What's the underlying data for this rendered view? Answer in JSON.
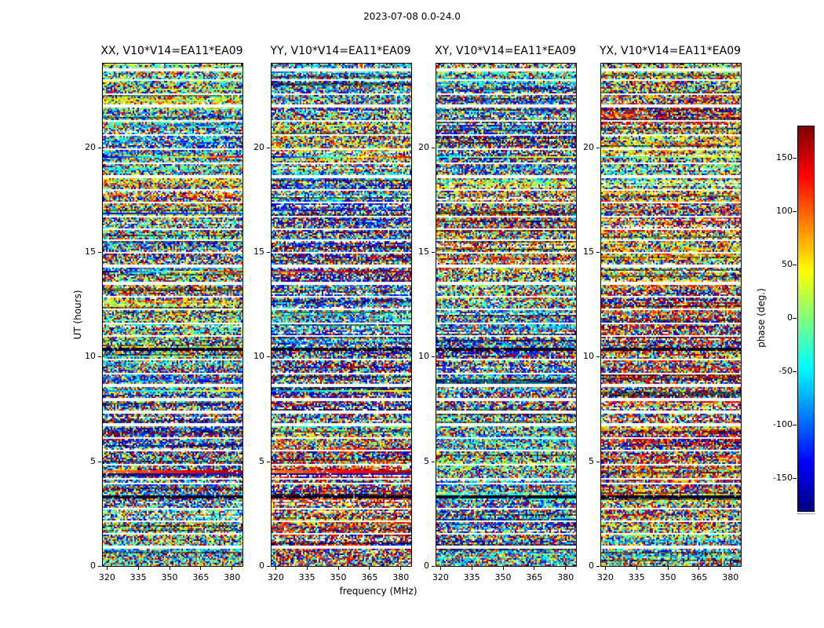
{
  "title": "2023-07-08 0.0-24.0",
  "xlabel": "frequency (MHz)",
  "ylabel": "UT (hours)",
  "panels": [
    {
      "title": "XX, V10*V14=EA11*EA09"
    },
    {
      "title": "YY, V10*V14=EA11*EA09"
    },
    {
      "title": "XY, V10*V14=EA11*EA09"
    },
    {
      "title": "YX, V10*V14=EA11*EA09"
    }
  ],
  "axes": {
    "x": {
      "min": 318,
      "max": 385,
      "ticks": [
        320,
        335,
        350,
        365,
        380
      ]
    },
    "y": {
      "min": 0,
      "max": 24,
      "ticks": [
        0,
        5,
        10,
        15,
        20
      ]
    }
  },
  "colorbar": {
    "label": "phase (deg.)",
    "min": -180,
    "max": 180,
    "ticks": [
      150,
      100,
      50,
      0,
      -50,
      -100,
      -150
    ]
  },
  "chart_data": {
    "type": "heatmap",
    "title": "2023-07-08 0.0-24.0",
    "subplots": [
      "XX, V10*V14=EA11*EA09",
      "YY, V10*V14=EA11*EA09",
      "XY, V10*V14=EA11*EA09",
      "YX, V10*V14=EA11*EA09"
    ],
    "xlabel": "frequency (MHz)",
    "ylabel": "UT (hours)",
    "value_label": "phase (deg.)",
    "x_range": [
      318,
      385
    ],
    "y_range": [
      0,
      24
    ],
    "value_range": [
      -180,
      180
    ],
    "colormap": "jet",
    "content": "Interferometric visibility phase versus frequency (MHz) and time (UT hours) for baseline V10*V14 = EA11*EA09 in four polarization products (XX, YY, XY, YX). The phase is noise-like over -180..180 deg, interrupted by thin white horizontal scan-gap rows, a few dark rows, and a few frequency-coherent phase-gradient rows.",
    "scan_gaps_hours": [
      [
        0.9,
        0.045
      ],
      [
        1.55,
        0.045
      ],
      [
        2.15,
        0.045
      ],
      [
        2.75,
        0.045
      ],
      [
        3.95,
        0.05
      ],
      [
        4.15,
        0.04
      ],
      [
        4.85,
        0.045
      ],
      [
        5.5,
        0.045
      ],
      [
        6.1,
        0.045
      ],
      [
        6.75,
        0.045
      ],
      [
        7.35,
        0.045
      ],
      [
        7.95,
        0.045
      ],
      [
        8.6,
        0.085
      ],
      [
        9.2,
        0.045
      ],
      [
        9.85,
        0.045
      ],
      [
        11.0,
        0.045
      ],
      [
        11.6,
        0.045
      ],
      [
        12.25,
        0.045
      ],
      [
        12.85,
        0.045
      ],
      [
        13.5,
        0.045
      ],
      [
        14.35,
        0.085
      ],
      [
        14.95,
        0.045
      ],
      [
        15.55,
        0.045
      ],
      [
        16.1,
        0.045
      ],
      [
        16.7,
        0.045
      ],
      [
        17.35,
        0.06
      ],
      [
        17.95,
        0.045
      ],
      [
        18.6,
        0.045
      ],
      [
        19.25,
        0.045
      ],
      [
        19.9,
        0.045
      ],
      [
        20.6,
        0.045
      ],
      [
        21.25,
        0.045
      ],
      [
        21.95,
        0.085
      ],
      [
        22.55,
        0.045
      ],
      [
        23.2,
        0.045
      ],
      [
        23.7,
        0.04
      ]
    ],
    "dark_rows_hours": [
      [
        10.35,
        0.09
      ],
      [
        3.3,
        0.05
      ]
    ],
    "coherent_rows": [
      {
        "ut": 19.55,
        "panels": [
          0,
          1
        ],
        "deg_start": -150,
        "deg_end": 150,
        "hw": 0.06
      },
      {
        "ut": 19.55,
        "panels": [
          2,
          3
        ],
        "deg_start": -40,
        "deg_end": 50,
        "hw": 0.05
      },
      {
        "ut": 16.85,
        "panels": [
          0
        ],
        "deg_start": -140,
        "deg_end": -100,
        "hw": 0.05
      },
      {
        "ut": 14.05,
        "panels": [
          0
        ],
        "deg_start": -170,
        "deg_end": 160,
        "hw": 0.06
      },
      {
        "ut": 14.05,
        "panels": [
          1
        ],
        "deg_start": 110,
        "deg_end": 175,
        "hw": 0.06
      },
      {
        "ut": 8.35,
        "panels": [
          0,
          1
        ],
        "deg_start": -90,
        "deg_end": 60,
        "hw": 0.05
      },
      {
        "ut": 4.5,
        "panels": [
          0,
          1
        ],
        "deg_start": 90,
        "deg_end": 170,
        "hw": 0.06
      },
      {
        "ut": 4.38,
        "panels": [
          0,
          1
        ],
        "deg_start": -170,
        "deg_end": -120,
        "hw": 0.05
      }
    ],
    "noise_seed": 20230708
  }
}
